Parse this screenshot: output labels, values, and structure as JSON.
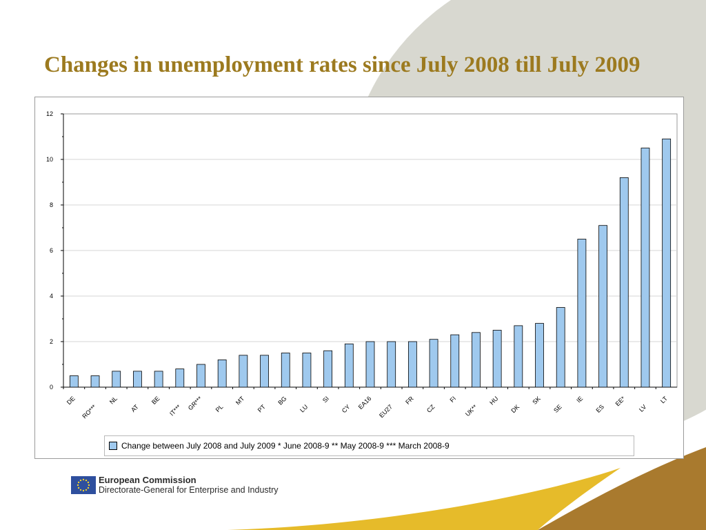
{
  "title": "Changes in unemployment rates since July 2008 till July 2009",
  "colors": {
    "title": "#9c7a1f",
    "bar_fill": "#9fc9ee",
    "bar_stroke": "#000000",
    "circle": "#d8d8d0",
    "brown": "#a97a2e",
    "yellow": "#e6bb2a",
    "eu_blue": "#2e4f9e",
    "eu_star": "#f2d22e"
  },
  "chart_data": {
    "type": "bar",
    "categories": [
      "DE",
      "RO***",
      "NL",
      "AT",
      "BE",
      "IT***",
      "GR***",
      "PL",
      "MT",
      "PT",
      "BG",
      "LU",
      "SI",
      "CY",
      "EA16",
      "EU27",
      "FR",
      "CZ",
      "FI",
      "UK**",
      "HU",
      "DK",
      "SK",
      "SE",
      "IE",
      "ES",
      "EE*",
      "LV",
      "LT"
    ],
    "values": [
      0.5,
      0.5,
      0.7,
      0.7,
      0.7,
      0.8,
      1.0,
      1.2,
      1.4,
      1.4,
      1.5,
      1.5,
      1.6,
      1.9,
      2.0,
      2.0,
      2.0,
      2.1,
      2.3,
      2.4,
      2.5,
      2.7,
      2.8,
      3.5,
      6.5,
      7.1,
      9.2,
      10.5,
      10.9
    ],
    "ylim": [
      0,
      12
    ],
    "yticks": [
      "0",
      "2",
      "4",
      "6",
      "8",
      "10",
      "12"
    ],
    "grid": true,
    "legend": "Change between July 2008 and July 2009   * June 2008-9   ** May 2008-9 *** March 2008-9",
    "legend_position": "bottom",
    "xlabel": "",
    "ylabel": ""
  },
  "footer": {
    "organization": "European Commission",
    "department": "Directorate-General for Enterprise and Industry"
  }
}
